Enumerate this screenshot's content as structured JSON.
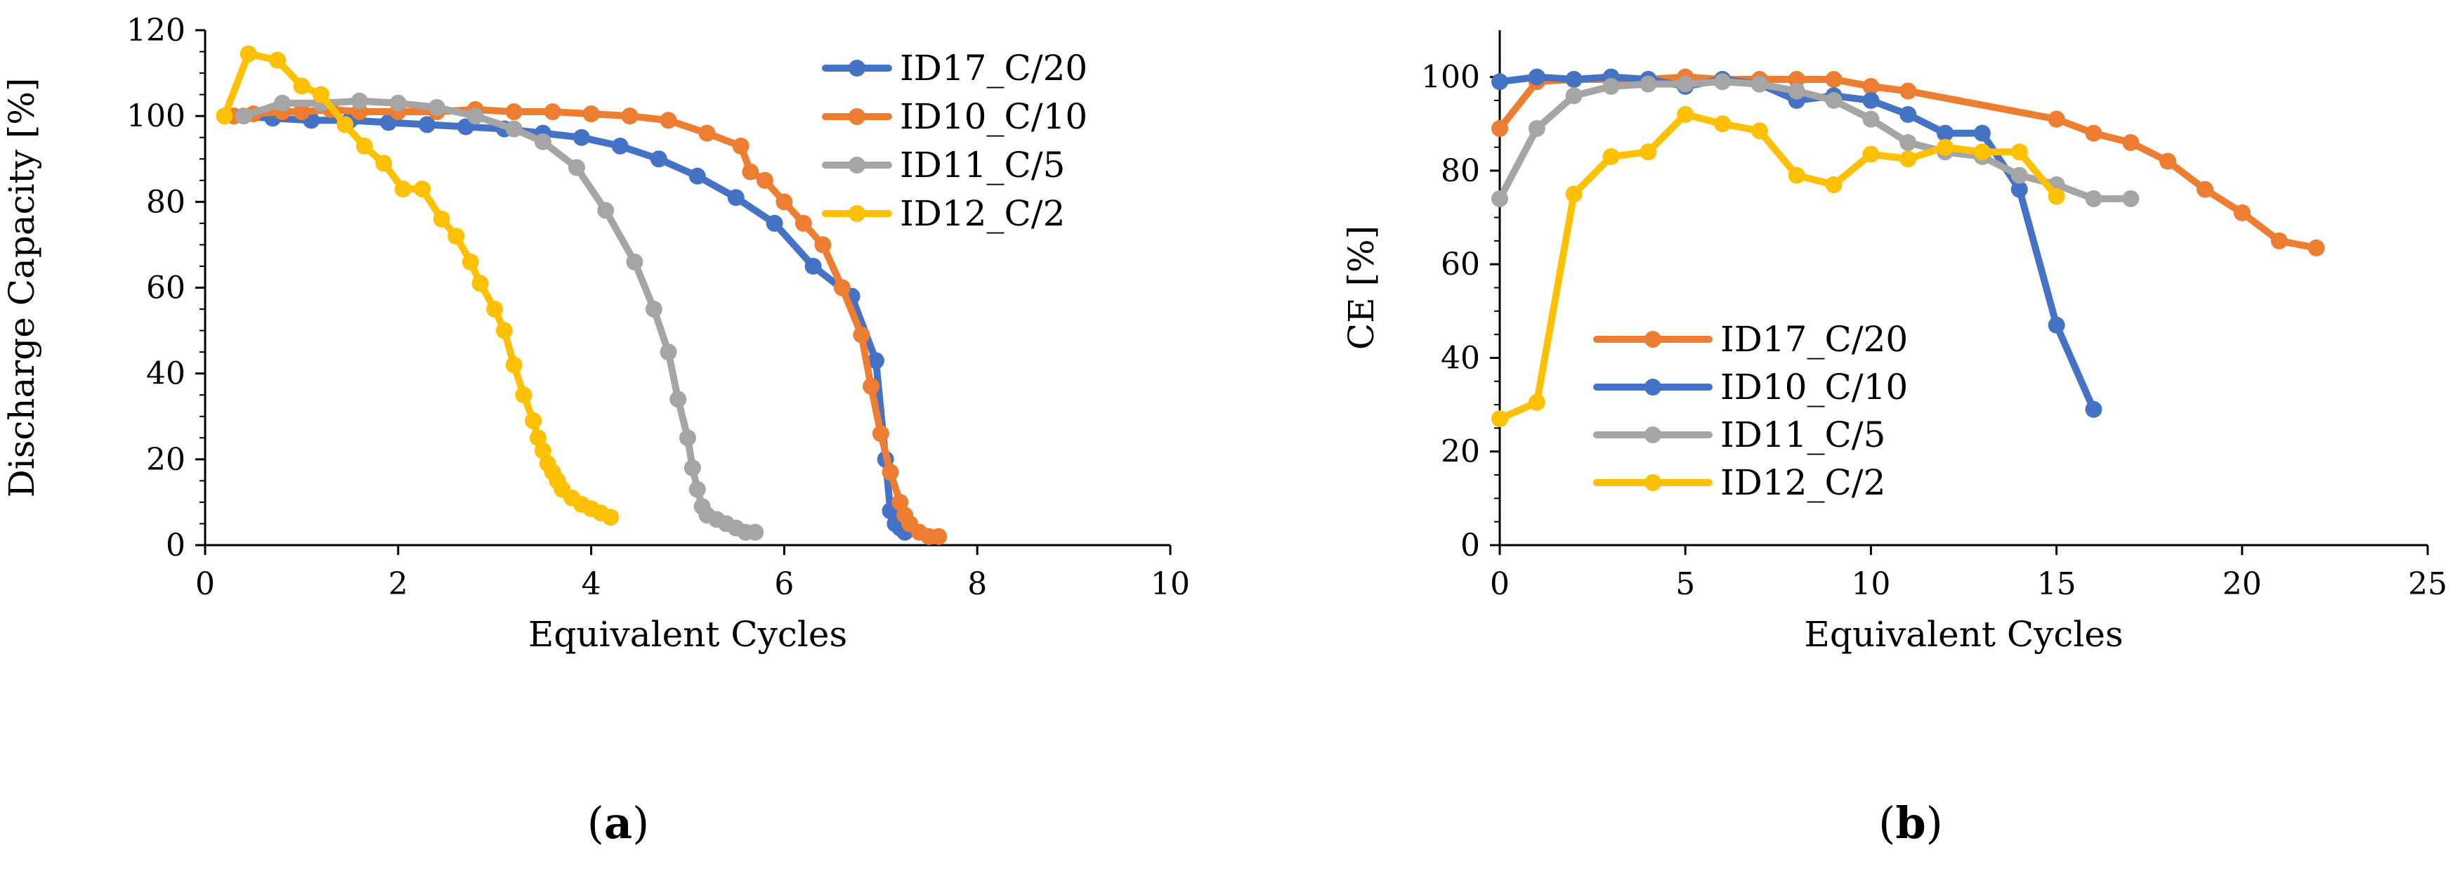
{
  "chart_data": [
    {
      "type": "line",
      "panel_label": "a",
      "title": "",
      "xlabel": "Equivalent Cycles",
      "ylabel": "Discharge Capacity [%]",
      "xlim": [
        0,
        10
      ],
      "ylim": [
        0,
        120
      ],
      "xticks": [
        0,
        2,
        4,
        6,
        8,
        10
      ],
      "yticks": [
        0,
        20,
        40,
        60,
        80,
        100,
        120
      ],
      "xtick_labels": [
        "0",
        "2",
        "4",
        "6",
        "8",
        "10"
      ],
      "ytick_labels": [
        "0",
        "20",
        "40",
        "60",
        "80",
        "100",
        "120"
      ],
      "grid": false,
      "legend_position": "top-right",
      "series": [
        {
          "name": "ID17_C/20",
          "color": "#4472C4",
          "x": [
            0.3,
            0.7,
            1.1,
            1.5,
            1.9,
            2.3,
            2.7,
            3.1,
            3.5,
            3.9,
            4.3,
            4.7,
            5.1,
            5.5,
            5.9,
            6.3,
            6.7,
            6.95,
            7.05,
            7.1,
            7.15,
            7.2,
            7.25
          ],
          "y": [
            100,
            99.5,
            99,
            99,
            98.5,
            98,
            97.5,
            97,
            96,
            95,
            93,
            90,
            86,
            81,
            75,
            65,
            58,
            43,
            20,
            8,
            5,
            4,
            3
          ]
        },
        {
          "name": "ID10_C/10",
          "color": "#ED7D31",
          "x": [
            0.3,
            0.5,
            0.8,
            1.0,
            1.3,
            1.6,
            2.0,
            2.4,
            2.8,
            3.2,
            3.6,
            4.0,
            4.4,
            4.8,
            5.2,
            5.55,
            5.65,
            5.8,
            6.0,
            6.2,
            6.4,
            6.6,
            6.8,
            6.9,
            7.0,
            7.1,
            7.2,
            7.25,
            7.3,
            7.4,
            7.5,
            7.6
          ],
          "y": [
            100,
            100.5,
            101,
            101,
            101.5,
            101,
            101,
            101,
            101.5,
            101,
            101,
            100.5,
            100,
            99,
            96,
            93,
            87,
            85,
            80,
            75,
            70,
            60,
            49,
            37,
            26,
            17,
            10,
            7,
            5,
            3,
            2,
            2
          ]
        },
        {
          "name": "ID11_C/5",
          "color": "#A5A5A5",
          "x": [
            0.4,
            0.8,
            1.2,
            1.6,
            2.0,
            2.4,
            2.8,
            3.2,
            3.5,
            3.85,
            4.15,
            4.45,
            4.65,
            4.8,
            4.9,
            5.0,
            5.05,
            5.1,
            5.15,
            5.2,
            5.3,
            5.4,
            5.5,
            5.6,
            5.7
          ],
          "y": [
            100,
            103,
            103,
            103.5,
            103,
            102,
            100,
            97,
            94,
            88,
            78,
            66,
            55,
            45,
            34,
            25,
            18,
            13,
            9,
            7,
            6,
            5,
            4,
            3,
            3
          ]
        },
        {
          "name": "ID12_C/2",
          "color": "#FFC000",
          "x": [
            0.2,
            0.45,
            0.75,
            1.0,
            1.2,
            1.45,
            1.65,
            1.85,
            2.05,
            2.25,
            2.45,
            2.6,
            2.75,
            2.85,
            3.0,
            3.1,
            3.2,
            3.3,
            3.4,
            3.45,
            3.5,
            3.55,
            3.6,
            3.65,
            3.7,
            3.8,
            3.9,
            4.0,
            4.1,
            4.2
          ],
          "y": [
            100,
            114.5,
            113,
            107,
            105,
            98,
            93,
            89,
            83,
            83,
            76,
            72,
            66,
            61,
            55,
            50,
            42,
            35,
            29,
            25,
            22,
            19,
            17,
            15,
            13,
            11,
            9.5,
            8.5,
            7.5,
            6.5
          ]
        }
      ]
    },
    {
      "type": "line",
      "panel_label": "b",
      "title": "",
      "xlabel": "Equivalent Cycles",
      "ylabel": "CE [%]",
      "xlim": [
        0,
        25
      ],
      "ylim": [
        0,
        110
      ],
      "xticks": [
        0,
        5,
        10,
        15,
        20,
        25
      ],
      "yticks": [
        0,
        20,
        40,
        60,
        80,
        100
      ],
      "xtick_labels": [
        "0",
        "5",
        "10",
        "15",
        "20",
        "25"
      ],
      "ytick_labels": [
        "0",
        "20",
        "40",
        "60",
        "80",
        "100"
      ],
      "grid": false,
      "legend_position": "center-left",
      "series": [
        {
          "name": "ID17_C/20",
          "color": "#ED7D31",
          "x": [
            0,
            1,
            2,
            3,
            4,
            5,
            6,
            7,
            8,
            9,
            10,
            11,
            15,
            16,
            17,
            18,
            19,
            20,
            21,
            22
          ],
          "y": [
            89,
            99,
            99.5,
            99.5,
            99.5,
            100,
            99.5,
            99.5,
            99.5,
            99.5,
            98,
            97,
            91,
            88,
            86,
            82,
            76,
            71,
            65,
            63.5
          ]
        },
        {
          "name": "ID10_C/10",
          "color": "#4472C4",
          "x": [
            0,
            1,
            2,
            3,
            4,
            5,
            6,
            7,
            8,
            9,
            10,
            11,
            12,
            13,
            14,
            15,
            16
          ],
          "y": [
            99,
            100,
            99.5,
            100,
            99.5,
            98,
            99.5,
            98.5,
            95,
            96,
            95,
            92,
            88,
            88,
            76,
            47,
            29
          ]
        },
        {
          "name": "ID11_C/5",
          "color": "#A5A5A5",
          "x": [
            0,
            1,
            2,
            3,
            4,
            5,
            6,
            7,
            8,
            9,
            10,
            11,
            12,
            13,
            14,
            15,
            16,
            17
          ],
          "y": [
            74,
            89,
            96,
            98,
            98.5,
            98.5,
            99,
            98.5,
            97,
            95,
            91,
            86,
            84,
            83,
            79,
            77,
            74,
            74
          ]
        },
        {
          "name": "ID12_C/2",
          "color": "#FFC000",
          "x": [
            0,
            1,
            2,
            3,
            4,
            5,
            6,
            7,
            8,
            9,
            10,
            11,
            12,
            13,
            14,
            15
          ],
          "y": [
            27,
            30.5,
            75,
            83,
            84,
            92,
            90,
            88.5,
            79,
            77,
            83.5,
            82.5,
            85,
            84,
            84,
            74.5
          ]
        }
      ]
    }
  ]
}
